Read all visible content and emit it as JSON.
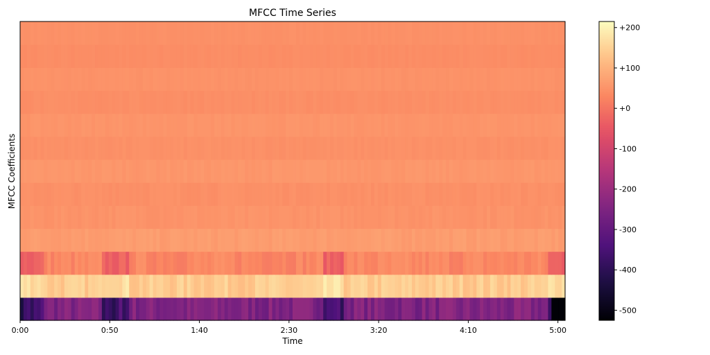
{
  "chart_data": {
    "type": "heatmap",
    "title": "MFCC Time Series",
    "xlabel": "Time",
    "ylabel": "MFCC Coefficients",
    "x_range_seconds": [
      0,
      304
    ],
    "x_ticks": [
      {
        "value": 0,
        "label": "0:00"
      },
      {
        "value": 50,
        "label": "0:50"
      },
      {
        "value": 100,
        "label": "1:40"
      },
      {
        "value": 150,
        "label": "2:30"
      },
      {
        "value": 200,
        "label": "3:20"
      },
      {
        "value": 250,
        "label": "4:10"
      },
      {
        "value": 300,
        "label": "5:00"
      }
    ],
    "colormap": "magma",
    "colorbar": {
      "range": [
        -525,
        215
      ],
      "ticks": [
        {
          "value": 200,
          "label": "+200"
        },
        {
          "value": 100,
          "label": "+100"
        },
        {
          "value": 0,
          "label": "+0"
        },
        {
          "value": -100,
          "label": "-100"
        },
        {
          "value": -200,
          "label": "-200"
        },
        {
          "value": -300,
          "label": "-300"
        },
        {
          "value": -400,
          "label": "-400"
        },
        {
          "value": -500,
          "label": "-500"
        }
      ]
    },
    "coefficient_bands_bottom_to_top": [
      {
        "coef": 0,
        "base": -250,
        "var": 80
      },
      {
        "coef": 1,
        "base": 140,
        "var": 45
      },
      {
        "coef": 2,
        "base": 30,
        "var": 40
      },
      {
        "coef": 3,
        "base": 65,
        "var": 15
      },
      {
        "coef": 4,
        "base": 50,
        "var": 12
      },
      {
        "coef": 5,
        "base": 45,
        "var": 10
      },
      {
        "coef": 6,
        "base": 55,
        "var": 10
      },
      {
        "coef": 7,
        "base": 45,
        "var": 8
      },
      {
        "coef": 8,
        "base": 52,
        "var": 8
      },
      {
        "coef": 9,
        "base": 42,
        "var": 8
      },
      {
        "coef": 10,
        "base": 48,
        "var": 6
      },
      {
        "coef": 11,
        "base": 40,
        "var": 6
      },
      {
        "coef": 12,
        "base": 45,
        "var": 5
      }
    ]
  }
}
